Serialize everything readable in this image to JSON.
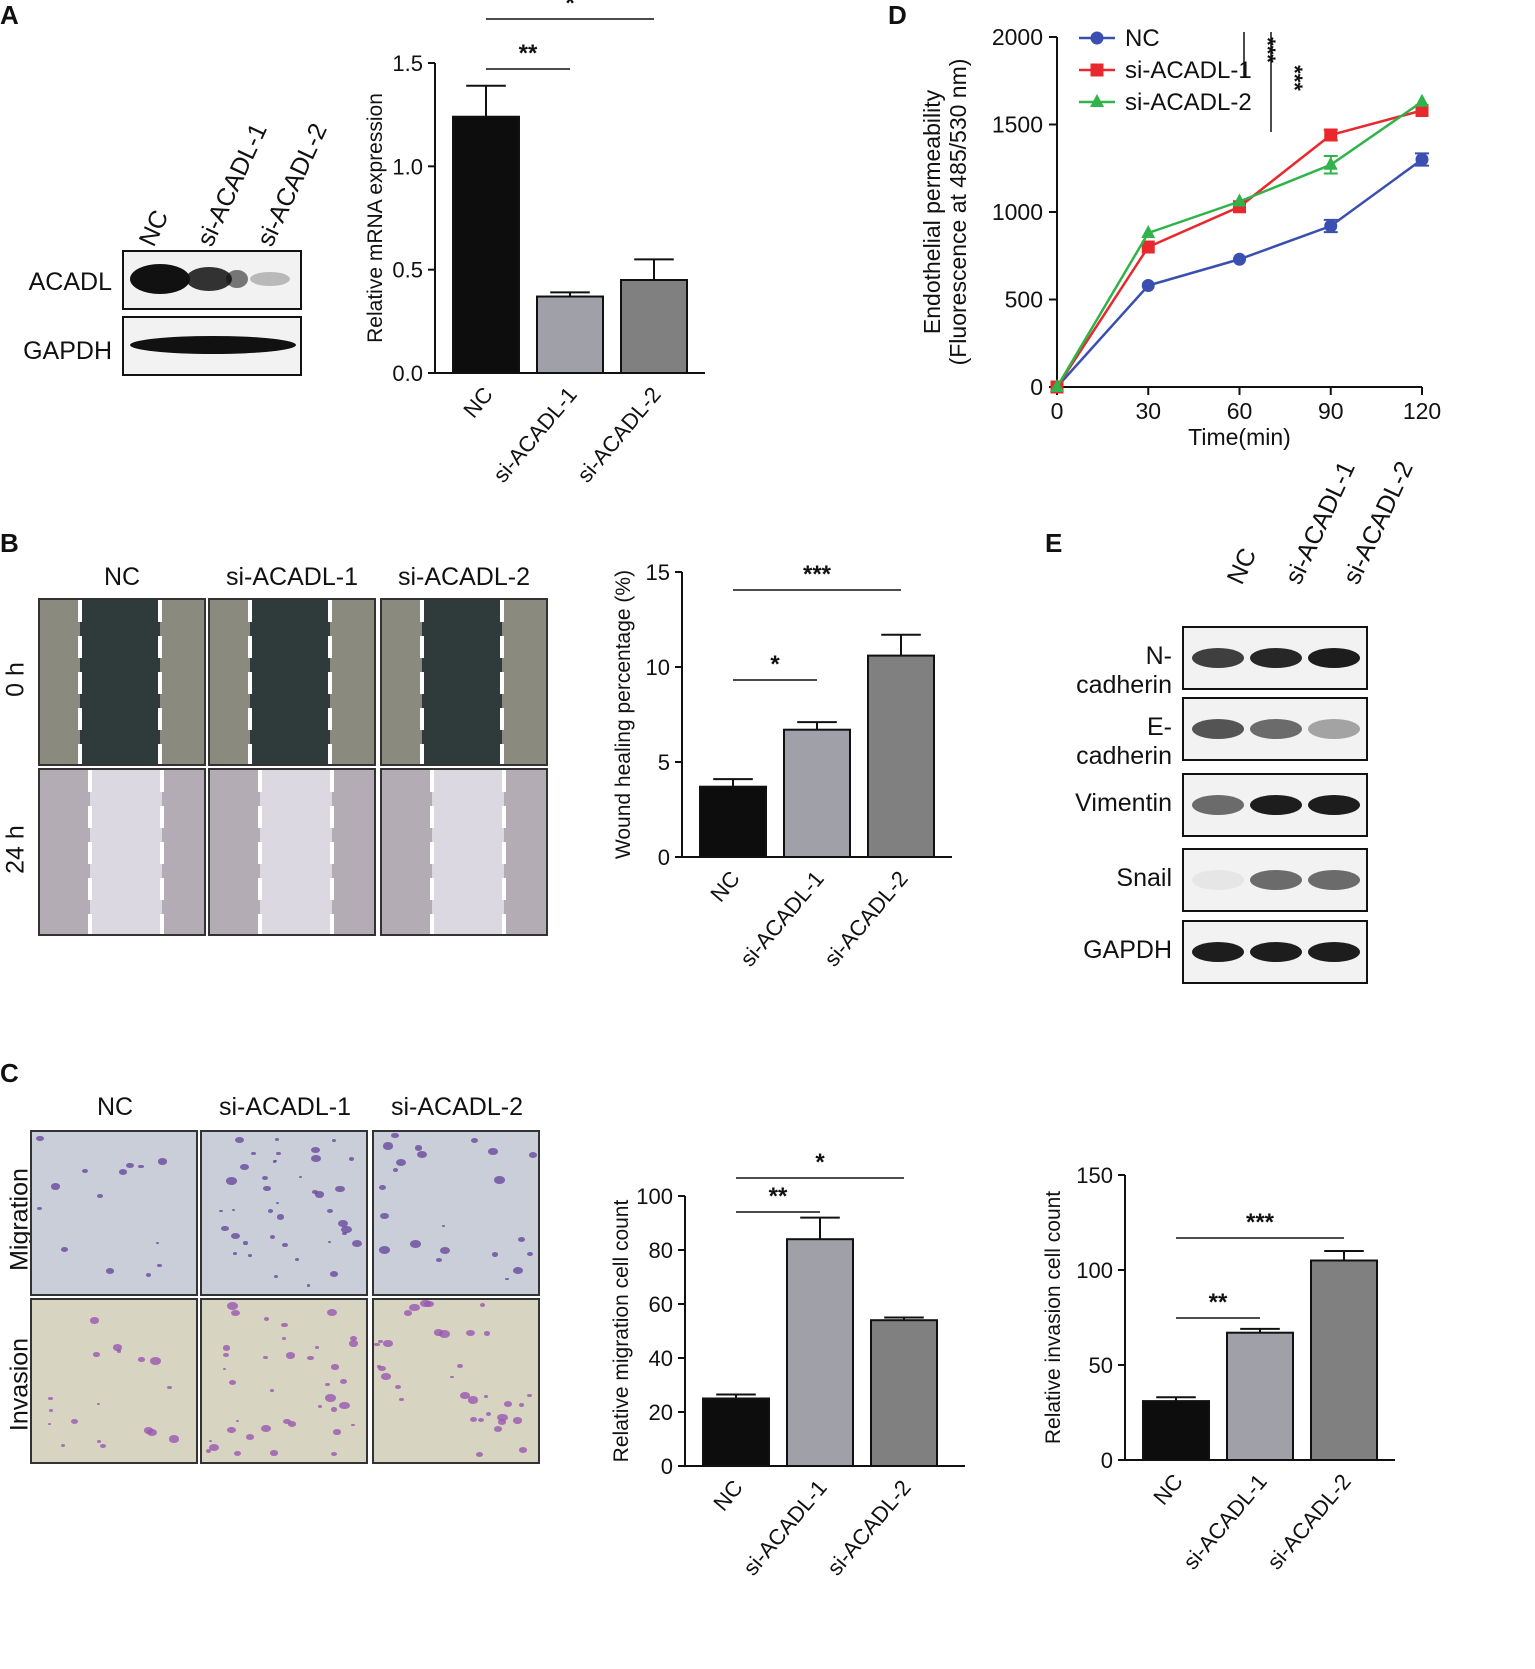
{
  "panels": {
    "A": "A",
    "B": "B",
    "C": "C",
    "D": "D",
    "E": "E"
  },
  "groups": [
    "NC",
    "si-ACADL-1",
    "si-ACADL-2"
  ],
  "blotA": {
    "rows": [
      "ACADL",
      "GAPDH"
    ]
  },
  "blotE": {
    "rows": [
      "N-cadherin",
      "E-cadherin",
      "Vimentin",
      "Snail",
      "GAPDH"
    ]
  },
  "woundB": {
    "rows": [
      "0 h",
      "24 h"
    ]
  },
  "transwellC": {
    "rows": [
      "Migration",
      "Invasion"
    ]
  },
  "chart_data": [
    {
      "id": "A-bar",
      "type": "bar",
      "categories": [
        "NC",
        "si-ACADL-1",
        "si-ACADL-2"
      ],
      "values": [
        1.24,
        0.37,
        0.45
      ],
      "errors": [
        0.15,
        0.02,
        0.1
      ],
      "ylabel": "Relative mRNA expression",
      "ylim": [
        0,
        1.5
      ],
      "yticks": [
        "0.0",
        "0.5",
        "1.0",
        "1.5"
      ],
      "colors": [
        "#0d0d0d",
        "#a0a0a8",
        "#808080"
      ],
      "significance": [
        {
          "from": 0,
          "to": 1,
          "label": "**"
        },
        {
          "from": 0,
          "to": 2,
          "label": "*"
        }
      ]
    },
    {
      "id": "B-bar",
      "type": "bar",
      "categories": [
        "NC",
        "si-ACADL-1",
        "si-ACADL-2"
      ],
      "values": [
        3.7,
        6.7,
        10.6
      ],
      "errors": [
        0.4,
        0.4,
        1.1
      ],
      "ylabel": "Wound healing percentage (%)",
      "ylim": [
        0,
        15
      ],
      "yticks": [
        "0",
        "5",
        "10",
        "15"
      ],
      "colors": [
        "#0d0d0d",
        "#a0a0a8",
        "#808080"
      ],
      "significance": [
        {
          "from": 0,
          "to": 1,
          "label": "*"
        },
        {
          "from": 0,
          "to": 2,
          "label": "***"
        }
      ]
    },
    {
      "id": "C-mig",
      "type": "bar",
      "categories": [
        "NC",
        "si-ACADL-1",
        "si-ACADL-2"
      ],
      "values": [
        25,
        84,
        54
      ],
      "errors": [
        1.5,
        8,
        1
      ],
      "ylabel": "Relative migration cell count",
      "ylim": [
        0,
        100
      ],
      "yticks": [
        "0",
        "20",
        "40",
        "60",
        "80",
        "100"
      ],
      "colors": [
        "#0d0d0d",
        "#a0a0a8",
        "#808080"
      ],
      "significance": [
        {
          "from": 0,
          "to": 1,
          "label": "**"
        },
        {
          "from": 0,
          "to": 2,
          "label": "*"
        }
      ]
    },
    {
      "id": "C-inv",
      "type": "bar",
      "categories": [
        "NC",
        "si-ACADL-1",
        "si-ACADL-2"
      ],
      "values": [
        31,
        67,
        105
      ],
      "errors": [
        2,
        2,
        5
      ],
      "ylabel": "Relative invasion cell count",
      "ylim": [
        0,
        150
      ],
      "yticks": [
        "0",
        "50",
        "100",
        "150"
      ],
      "colors": [
        "#0d0d0d",
        "#a0a0a8",
        "#808080"
      ],
      "significance": [
        {
          "from": 0,
          "to": 1,
          "label": "**"
        },
        {
          "from": 0,
          "to": 2,
          "label": "***"
        }
      ]
    },
    {
      "id": "D-line",
      "type": "line",
      "x": [
        0,
        30,
        60,
        90,
        120
      ],
      "xlabel": "Time(min)",
      "ylabel": "Endothelial permeability",
      "ylabel2": "(Fluorescence at 485/530 nm)",
      "xlim": [
        0,
        120
      ],
      "ylim": [
        0,
        2000
      ],
      "xticks": [
        "0",
        "30",
        "60",
        "90",
        "120"
      ],
      "yticks": [
        "0",
        "500",
        "1000",
        "1500",
        "2000"
      ],
      "series": [
        {
          "name": "NC",
          "values": [
            0,
            580,
            730,
            920,
            1300
          ],
          "errors": [
            0,
            0,
            0,
            35,
            35
          ],
          "color": "#3a4fb0",
          "marker": "circle"
        },
        {
          "name": "si-ACADL-1",
          "values": [
            0,
            800,
            1030,
            1440,
            1580
          ],
          "errors": [
            0,
            0,
            0,
            30,
            0
          ],
          "color": "#e8282c",
          "marker": "square"
        },
        {
          "name": "si-ACADL-2",
          "values": [
            0,
            880,
            1060,
            1270,
            1630
          ],
          "errors": [
            0,
            0,
            0,
            50,
            0
          ],
          "color": "#2fb34a",
          "marker": "triangle"
        }
      ],
      "significance": [
        {
          "label": "***"
        },
        {
          "label": "***"
        }
      ]
    }
  ]
}
